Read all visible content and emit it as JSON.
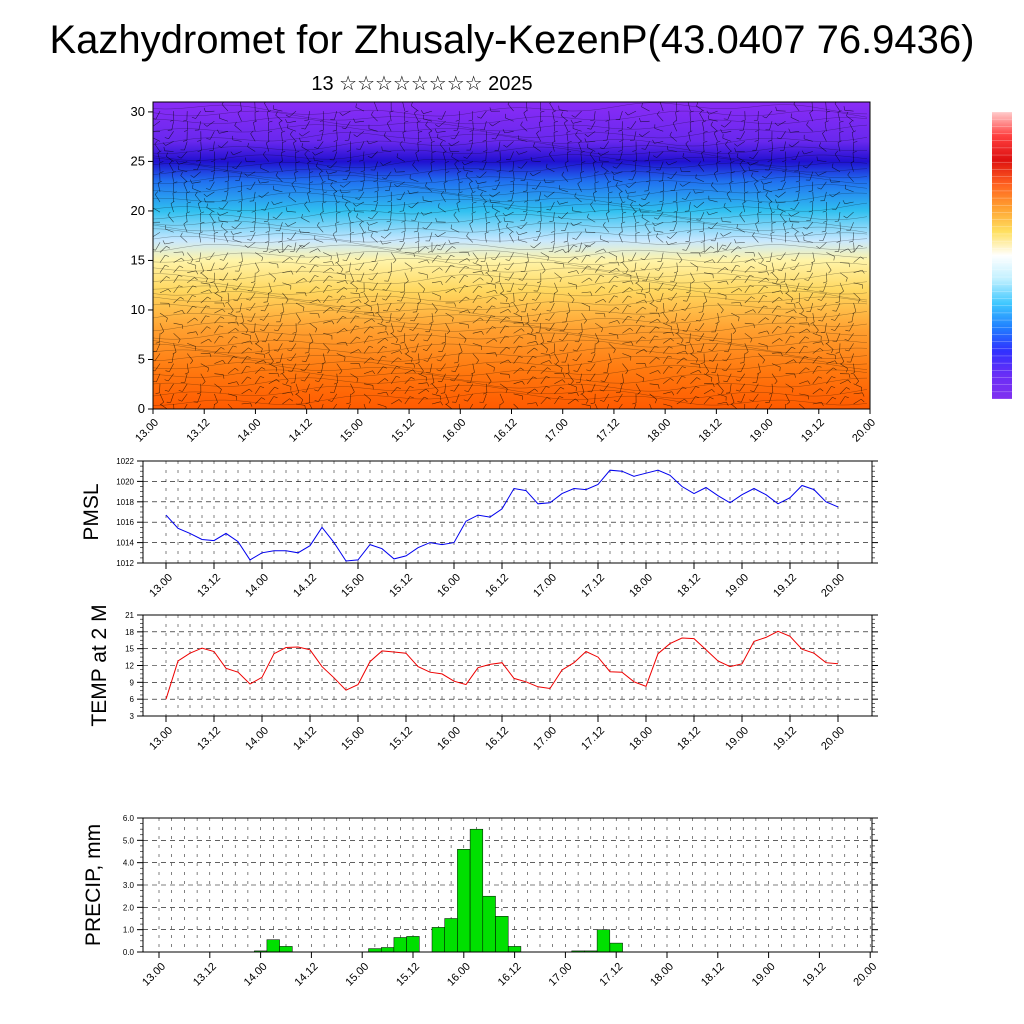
{
  "title": "Kazhydromet for Zhusaly-KezenP(43.0407 76.9436)",
  "subtitle": "13 ☆☆☆☆☆☆☆☆ 2025",
  "chart_data": [
    {
      "type": "heatmap",
      "name": "temperature-wind-cross-section",
      "y_range": [
        0,
        31
      ],
      "y_ticks": [
        0,
        5,
        10,
        15,
        20,
        25,
        30
      ],
      "x_range": [
        0,
        168
      ],
      "x_ticks": [
        {
          "label": "13.00",
          "hour": 0
        },
        {
          "label": "13.12",
          "hour": 12
        },
        {
          "label": "14.00",
          "hour": 24
        },
        {
          "label": "14.12",
          "hour": 36
        },
        {
          "label": "15.00",
          "hour": 48
        },
        {
          "label": "15.12",
          "hour": 60
        },
        {
          "label": "16.00",
          "hour": 72
        },
        {
          "label": "16.12",
          "hour": 84
        },
        {
          "label": "17.00",
          "hour": 96
        },
        {
          "label": "17.12",
          "hour": 108
        },
        {
          "label": "18.00",
          "hour": 120
        },
        {
          "label": "18.12",
          "hour": 132
        },
        {
          "label": "19.00",
          "hour": 144
        },
        {
          "label": "19.12",
          "hour": 156
        },
        {
          "label": "20.00",
          "hour": 168
        }
      ],
      "color_bands": [
        {
          "level": 0,
          "color": "#ff5a00"
        },
        {
          "level": 4,
          "color": "#ff7a10"
        },
        {
          "level": 8,
          "color": "#ffa030"
        },
        {
          "level": 12,
          "color": "#ffd860"
        },
        {
          "level": 15,
          "color": "#fff4a8"
        },
        {
          "level": 17,
          "color": "#c8e8ff"
        },
        {
          "level": 20,
          "color": "#30c0f0"
        },
        {
          "level": 23,
          "color": "#2070f0"
        },
        {
          "level": 25,
          "color": "#2010d0"
        },
        {
          "level": 27,
          "color": "#6828ee"
        },
        {
          "level": 31,
          "color": "#8a2cf6"
        }
      ],
      "colorbar": [
        "#ffcccc",
        "#ff4040",
        "#dd1010",
        "#ff6020",
        "#ffa030",
        "#ffe060",
        "#ffffff",
        "#c0f0ff",
        "#40c8ff",
        "#2080ff",
        "#3030ff",
        "#6a2ef6",
        "#8030f0"
      ]
    },
    {
      "type": "line",
      "ylabel": "PMSL",
      "ylim": [
        1012,
        1022
      ],
      "y_ticks": [
        1012,
        1014,
        1016,
        1018,
        1020,
        1022
      ],
      "x_ticks": [
        "13.00",
        "13.12",
        "14.00",
        "14.12",
        "15.00",
        "15.12",
        "16.00",
        "16.12",
        "17.00",
        "17.12",
        "18.00",
        "18.12",
        "19.00",
        "19.12",
        "20.00"
      ],
      "x_step_hours": 3,
      "color": "#0000ee",
      "values": [
        1016.7,
        1015.4,
        1014.9,
        1014.3,
        1014.2,
        1014.9,
        1014.1,
        1012.3,
        1013.0,
        1013.2,
        1013.2,
        1013.0,
        1013.7,
        1015.5,
        1014.0,
        1012.2,
        1012.3,
        1013.8,
        1013.4,
        1012.4,
        1012.7,
        1013.5,
        1014.0,
        1013.8,
        1014.0,
        1016.1,
        1016.7,
        1016.5,
        1017.3,
        1019.3,
        1019.1,
        1017.8,
        1017.9,
        1018.8,
        1019.3,
        1019.2,
        1019.7,
        1021.1,
        1021.0,
        1020.5,
        1020.8,
        1021.1,
        1020.6,
        1019.5,
        1018.8,
        1019.4,
        1018.6,
        1017.9,
        1018.7,
        1019.3,
        1018.7,
        1017.8,
        1018.4,
        1019.6,
        1019.2,
        1018.0,
        1017.5
      ]
    },
    {
      "type": "line",
      "ylabel": "TEMP at 2 M",
      "ylim": [
        3,
        21
      ],
      "y_ticks": [
        3,
        6,
        9,
        12,
        15,
        18,
        21
      ],
      "x_ticks": [
        "13.00",
        "13.12",
        "14.00",
        "14.12",
        "15.00",
        "15.12",
        "16.00",
        "16.12",
        "17.00",
        "17.12",
        "18.00",
        "18.12",
        "19.00",
        "19.12",
        "20.00"
      ],
      "x_step_hours": 3,
      "color": "#ee0000",
      "values": [
        6.0,
        12.8,
        14.2,
        15.1,
        14.5,
        11.5,
        10.8,
        8.7,
        9.9,
        14.1,
        15.2,
        15.3,
        14.8,
        11.8,
        9.8,
        7.6,
        8.6,
        12.7,
        14.6,
        14.4,
        14.2,
        11.8,
        10.8,
        10.5,
        9.2,
        8.6,
        11.6,
        12.2,
        12.5,
        9.7,
        9.1,
        8.2,
        7.9,
        11.2,
        12.5,
        14.5,
        13.5,
        10.9,
        10.8,
        9.1,
        8.3,
        14.1,
        15.9,
        16.9,
        16.8,
        14.8,
        12.8,
        11.8,
        12.3,
        16.3,
        17.0,
        18.1,
        17.2,
        14.9,
        14.2,
        12.5,
        12.3
      ]
    },
    {
      "type": "bar",
      "ylabel": "PRECIP, mm",
      "ylim": [
        0,
        6
      ],
      "y_ticks": [
        "0.0",
        "1.0",
        "2.0",
        "3.0",
        "4.0",
        "5.0",
        "6.0"
      ],
      "x_ticks": [
        "13.00",
        "13.12",
        "14.00",
        "14.12",
        "15.00",
        "15.12",
        "16.00",
        "16.12",
        "17.00",
        "17.12",
        "18.00",
        "18.12",
        "19.00",
        "19.12",
        "20.00"
      ],
      "bar_width_hours": 3,
      "color": "#00e000",
      "values": [
        0,
        0,
        0,
        0,
        0,
        0,
        0,
        0,
        0.05,
        0.55,
        0.25,
        0,
        0,
        0,
        0,
        0,
        0,
        0.15,
        0.2,
        0.65,
        0.7,
        0,
        1.1,
        1.5,
        4.6,
        5.5,
        2.5,
        1.6,
        0.25,
        0,
        0,
        0,
        0,
        0.05,
        0.05,
        1.0,
        0.4,
        0,
        0,
        0,
        0,
        0,
        0,
        0,
        0,
        0,
        0,
        0,
        0,
        0,
        0,
        0,
        0,
        0,
        0,
        0
      ]
    }
  ]
}
